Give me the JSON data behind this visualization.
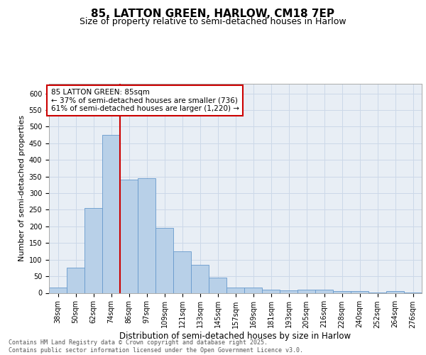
{
  "title1": "85, LATTON GREEN, HARLOW, CM18 7EP",
  "title2": "Size of property relative to semi-detached houses in Harlow",
  "xlabel": "Distribution of semi-detached houses by size in Harlow",
  "ylabel": "Number of semi-detached properties",
  "categories": [
    "38sqm",
    "50sqm",
    "62sqm",
    "74sqm",
    "86sqm",
    "97sqm",
    "109sqm",
    "121sqm",
    "133sqm",
    "145sqm",
    "157sqm",
    "169sqm",
    "181sqm",
    "193sqm",
    "205sqm",
    "216sqm",
    "228sqm",
    "240sqm",
    "252sqm",
    "264sqm",
    "276sqm"
  ],
  "values": [
    15,
    75,
    255,
    475,
    340,
    345,
    195,
    125,
    85,
    45,
    15,
    15,
    10,
    7,
    10,
    10,
    5,
    5,
    1,
    5,
    1
  ],
  "bar_color": "#b8d0e8",
  "bar_edge_color": "#6699cc",
  "grid_color": "#ccd8e8",
  "background_color": "#e8eef5",
  "annotation_box_color": "#ffffff",
  "annotation_border_color": "#cc0000",
  "vline_color": "#cc0000",
  "vline_x_index": 4,
  "annotation_title": "85 LATTON GREEN: 85sqm",
  "annotation_line1": "← 37% of semi-detached houses are smaller (736)",
  "annotation_line2": "61% of semi-detached houses are larger (1,220) →",
  "footer1": "Contains HM Land Registry data © Crown copyright and database right 2025.",
  "footer2": "Contains public sector information licensed under the Open Government Licence v3.0.",
  "ylim": [
    0,
    630
  ],
  "yticks": [
    0,
    50,
    100,
    150,
    200,
    250,
    300,
    350,
    400,
    450,
    500,
    550,
    600
  ],
  "title1_fontsize": 11,
  "title2_fontsize": 9,
  "xlabel_fontsize": 8.5,
  "ylabel_fontsize": 8,
  "tick_fontsize": 7,
  "annotation_fontsize": 7.5,
  "footer_fontsize": 6
}
